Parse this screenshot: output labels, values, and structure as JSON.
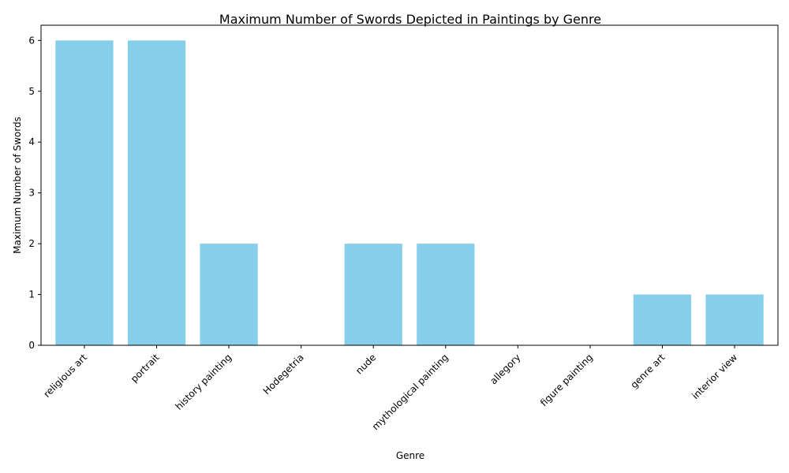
{
  "chart_data": {
    "type": "bar",
    "title": "Maximum Number of Swords Depicted in Paintings by Genre",
    "xlabel": "Genre",
    "ylabel": "Maximum Number of Swords",
    "categories": [
      "religious art",
      "portrait",
      "history painting",
      "Hodegetria",
      "nude",
      "mythological painting",
      "allegory",
      "figure painting",
      "genre art",
      "interior view"
    ],
    "values": [
      6,
      6,
      2,
      0,
      2,
      2,
      0,
      0,
      1,
      1
    ],
    "yticks": [
      "0",
      "1",
      "2",
      "3",
      "4",
      "5",
      "6"
    ],
    "ylim": [
      0,
      6.3
    ],
    "grid": false,
    "bar_color": "#87ceeb"
  }
}
